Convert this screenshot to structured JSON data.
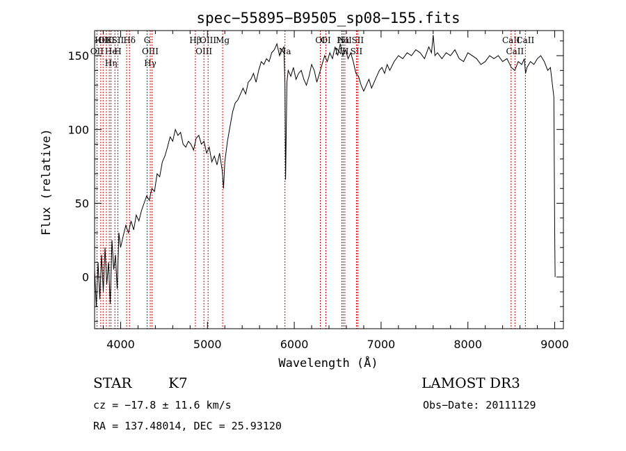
{
  "chart_data": {
    "type": "line",
    "title": "spec−55895−B9505_sp08−155.fits",
    "xlabel": "Wavelength (Å)",
    "ylabel": "Flux (relative)",
    "xlim": [
      3700,
      9100
    ],
    "ylim": [
      -35,
      167
    ],
    "x_ticks": [
      4000,
      5000,
      6000,
      7000,
      8000,
      9000
    ],
    "y_ticks": [
      0,
      50,
      100,
      150
    ],
    "x_tick_labels": [
      "4000",
      "5000",
      "6000",
      "7000",
      "8000",
      "9000"
    ],
    "y_tick_labels": [
      "0",
      "50",
      "100",
      "150"
    ],
    "grid": false,
    "line_color": "#000000",
    "marker_color": "#cc0000",
    "series": [
      {
        "x": [
          3700,
          3720,
          3740,
          3760,
          3780,
          3800,
          3820,
          3840,
          3860,
          3880,
          3900,
          3920,
          3940,
          3960,
          3980,
          4000,
          4030,
          4060,
          4090,
          4120,
          4150,
          4180,
          4210,
          4240,
          4270,
          4300,
          4330,
          4360,
          4390,
          4420,
          4450,
          4480,
          4510,
          4540,
          4570,
          4600,
          4630,
          4660,
          4690,
          4720,
          4750,
          4780,
          4810,
          4840,
          4870,
          4900,
          4930,
          4960,
          4990,
          5020,
          5050,
          5080,
          5110,
          5140,
          5170,
          5185,
          5200,
          5230,
          5260,
          5290,
          5320,
          5350,
          5380,
          5410,
          5440,
          5470,
          5500,
          5530,
          5560,
          5590,
          5620,
          5650,
          5680,
          5710,
          5740,
          5770,
          5800,
          5830,
          5860,
          5880,
          5893,
          5900,
          5915,
          5930,
          5960,
          5990,
          6020,
          6050,
          6080,
          6110,
          6140,
          6170,
          6200,
          6230,
          6260,
          6290,
          6320,
          6350,
          6380,
          6410,
          6440,
          6470,
          6500,
          6530,
          6560,
          6590,
          6620,
          6650,
          6680,
          6710,
          6740,
          6770,
          6800,
          6830,
          6860,
          6890,
          6920,
          6950,
          6980,
          7010,
          7040,
          7070,
          7100,
          7150,
          7200,
          7250,
          7300,
          7350,
          7400,
          7450,
          7500,
          7550,
          7580,
          7600,
          7620,
          7650,
          7700,
          7750,
          7800,
          7850,
          7900,
          7950,
          8000,
          8050,
          8100,
          8150,
          8200,
          8250,
          8300,
          8350,
          8400,
          8450,
          8500,
          8540,
          8580,
          8620,
          8650,
          8664,
          8680,
          8720,
          8760,
          8800,
          8840,
          8880,
          8920,
          8950,
          8970,
          8990,
          9000,
          9005
        ],
        "y": [
          5,
          -20,
          10,
          -15,
          15,
          -10,
          20,
          -5,
          10,
          -18,
          25,
          5,
          15,
          -8,
          30,
          20,
          28,
          35,
          30,
          38,
          32,
          42,
          38,
          45,
          50,
          55,
          52,
          60,
          58,
          70,
          68,
          78,
          82,
          88,
          95,
          92,
          100,
          96,
          98,
          90,
          88,
          92,
          90,
          86,
          94,
          96,
          90,
          92,
          84,
          88,
          78,
          82,
          76,
          84,
          72,
          60,
          78,
          92,
          102,
          112,
          118,
          120,
          124,
          128,
          124,
          132,
          134,
          138,
          132,
          140,
          146,
          144,
          148,
          146,
          152,
          154,
          158,
          150,
          154,
          156,
          130,
          66,
          132,
          140,
          136,
          142,
          134,
          138,
          140,
          134,
          130,
          136,
          144,
          140,
          132,
          138,
          144,
          150,
          146,
          152,
          148,
          156,
          150,
          158,
          150,
          154,
          148,
          152,
          146,
          138,
          136,
          130,
          126,
          130,
          134,
          128,
          132,
          136,
          140,
          142,
          138,
          144,
          140,
          146,
          150,
          148,
          152,
          150,
          154,
          152,
          148,
          156,
          152,
          164,
          150,
          152,
          148,
          152,
          150,
          154,
          148,
          146,
          152,
          150,
          148,
          144,
          146,
          150,
          148,
          150,
          146,
          148,
          142,
          140,
          146,
          144,
          148,
          138,
          142,
          146,
          144,
          148,
          150,
          146,
          140,
          142,
          132,
          122,
          30,
          0
        ]
      }
    ],
    "markers": [
      {
        "x": 3771,
        "labels": [
          "Hθ"
        ]
      },
      {
        "x": 3798,
        "labels": [
          ""
        ]
      },
      {
        "x": 3727,
        "labels": [
          "OII"
        ]
      },
      {
        "x": 3836,
        "labels": [
          "OIII"
        ]
      },
      {
        "x": 3869,
        "labels": [
          "K"
        ]
      },
      {
        "x": 3889,
        "labels": [
          "He",
          "Hη"
        ]
      },
      {
        "x": 3934,
        "labels": [
          ""
        ]
      },
      {
        "x": 3968,
        "labels": [
          "SII",
          "H"
        ]
      },
      {
        "x": 4069,
        "labels": [
          ""
        ]
      },
      {
        "x": 4102,
        "labels": [
          "Hδ"
        ]
      },
      {
        "x": 4305,
        "labels": [
          "G"
        ]
      },
      {
        "x": 4341,
        "labels": [
          "OIII",
          "Hγ"
        ]
      },
      {
        "x": 4363,
        "labels": [
          ""
        ]
      },
      {
        "x": 4861,
        "labels": [
          "Hβ"
        ]
      },
      {
        "x": 4959,
        "labels": [
          "OIII"
        ]
      },
      {
        "x": 5007,
        "labels": [
          "OIII"
        ]
      },
      {
        "x": 5175,
        "labels": [
          "Mg"
        ]
      },
      {
        "x": 5893,
        "labels": [
          "Na"
        ]
      },
      {
        "x": 6300,
        "labels": [
          "OI"
        ]
      },
      {
        "x": 6364,
        "labels": [
          "OI"
        ]
      },
      {
        "x": 6548,
        "labels": [
          "NII"
        ]
      },
      {
        "x": 6563,
        "labels": [
          "Hα"
        ]
      },
      {
        "x": 6583,
        "labels": [
          "NII"
        ]
      },
      {
        "x": 6716,
        "labels": [
          "SII"
        ]
      },
      {
        "x": 6731,
        "labels": [
          "SII"
        ]
      },
      {
        "x": 8498,
        "labels": [
          "CaII"
        ]
      },
      {
        "x": 8542,
        "labels": [
          "CaII"
        ]
      },
      {
        "x": 8662,
        "labels": [
          "CaII"
        ]
      }
    ]
  },
  "footer": {
    "object_class": "STAR",
    "subclass": "K7",
    "survey": "LAMOST DR3",
    "redshift": "cz = −17.8 ± 11.6 km/s",
    "obs_date": "Obs−Date: 20111129",
    "coords": "RA = 137.48014, DEC =  25.93120"
  }
}
